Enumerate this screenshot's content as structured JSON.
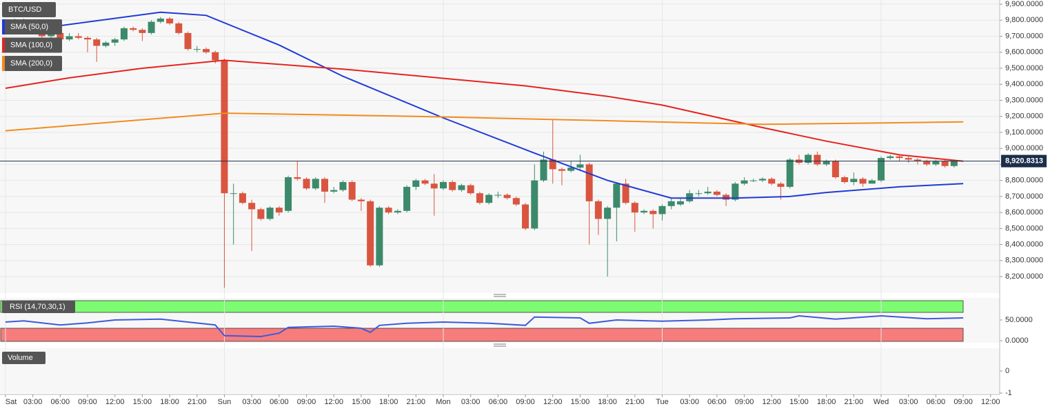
{
  "chart_data": [
    {
      "type": "candlestick",
      "title": "BTC/USD",
      "x": [
        0,
        1,
        2,
        3,
        4,
        5,
        6,
        7,
        8,
        9,
        10,
        11,
        12,
        13,
        14,
        15,
        16,
        17,
        18,
        19,
        20,
        21,
        22,
        23,
        24,
        25,
        26,
        27,
        28,
        29,
        30,
        31,
        32,
        33,
        34,
        35,
        36,
        37,
        38,
        39,
        40,
        41,
        42,
        43,
        44,
        45,
        46,
        47,
        48,
        49,
        50,
        51,
        52,
        53,
        54,
        55,
        56,
        57,
        58,
        59,
        60,
        61,
        62,
        63,
        64,
        65,
        66,
        67,
        68,
        69,
        70,
        71,
        72,
        73,
        74,
        75,
        76,
        77,
        78,
        79,
        80,
        81,
        82,
        83,
        84,
        85,
        86,
        87,
        88,
        89,
        90,
        91,
        92,
        93,
        94,
        95,
        96,
        97,
        98,
        99,
        100,
        101,
        102,
        103,
        104
      ],
      "open": [
        9790,
        9760,
        9800,
        9750,
        9730,
        9700,
        9720,
        9680,
        9700,
        9690,
        9680,
        9640,
        9660,
        9680,
        9750,
        9740,
        9720,
        9790,
        9810,
        9780,
        9720,
        9620,
        9620,
        9600,
        9550,
        8720,
        8720,
        8660,
        8620,
        8560,
        8630,
        8610,
        8820,
        8810,
        8750,
        8810,
        8730,
        8740,
        8790,
        8680,
        8670,
        8270,
        8630,
        8600,
        8610,
        8760,
        8800,
        8780,
        8750,
        8790,
        8740,
        8770,
        8720,
        8660,
        8710,
        8710,
        8690,
        8650,
        8500,
        8800,
        8930,
        8870,
        8860,
        8880,
        8900,
        8670,
        8560,
        8630,
        8780,
        8660,
        8600,
        8610,
        8590,
        8640,
        8650,
        8670,
        8720,
        8720,
        8730,
        8710,
        8680,
        8780,
        8800,
        8800,
        8810,
        8780,
        8760,
        8930,
        8910,
        8960,
        8900,
        8920,
        8820,
        8790,
        8810,
        8780,
        8800,
        8940,
        8950,
        8940,
        8930,
        8920,
        8900,
        8920,
        8890
      ],
      "high": [
        9800,
        9810,
        9810,
        9760,
        9740,
        9730,
        9730,
        9720,
        9720,
        9700,
        9690,
        9670,
        9690,
        9760,
        9760,
        9750,
        9800,
        9820,
        9820,
        9790,
        9730,
        9640,
        9630,
        9610,
        9560,
        8780,
        8730,
        8680,
        8630,
        8640,
        8640,
        8830,
        8920,
        8820,
        8820,
        8820,
        8760,
        8800,
        8800,
        8690,
        8680,
        8640,
        8640,
        8620,
        8770,
        8810,
        8810,
        8840,
        8800,
        8800,
        8780,
        8780,
        8730,
        8720,
        8730,
        8720,
        8700,
        8660,
        8900,
        8980,
        9180,
        8880,
        8920,
        8960,
        8910,
        8680,
        8640,
        8790,
        8810,
        8670,
        8620,
        8620,
        8650,
        8690,
        8690,
        8740,
        8740,
        8760,
        8740,
        8720,
        8790,
        8820,
        8810,
        8820,
        8820,
        8790,
        8940,
        8960,
        8970,
        8980,
        8930,
        8930,
        8830,
        8850,
        8820,
        8810,
        8950,
        8960,
        8960,
        8950,
        8940,
        8930,
        8930,
        8930,
        8930
      ],
      "low": [
        9750,
        9750,
        9740,
        9720,
        9690,
        9640,
        9670,
        9670,
        9680,
        9600,
        9540,
        9630,
        9640,
        9670,
        9730,
        9670,
        9710,
        9780,
        9770,
        9710,
        9610,
        9600,
        9590,
        9530,
        8130,
        8400,
        8650,
        8360,
        8550,
        8550,
        8580,
        8600,
        8800,
        8740,
        8740,
        8660,
        8720,
        8730,
        8670,
        8610,
        8260,
        8260,
        8590,
        8590,
        8600,
        8740,
        8770,
        8580,
        8740,
        8730,
        8730,
        8710,
        8650,
        8650,
        8690,
        8680,
        8640,
        8490,
        8490,
        8790,
        8780,
        8770,
        8850,
        8870,
        8400,
        8460,
        8200,
        8420,
        8650,
        8480,
        8590,
        8500,
        8550,
        8620,
        8640,
        8660,
        8700,
        8710,
        8700,
        8640,
        8670,
        8770,
        8790,
        8790,
        8770,
        8680,
        8750,
        8900,
        8900,
        8890,
        8890,
        8810,
        8780,
        8770,
        8760,
        8780,
        8790,
        8930,
        8920,
        8910,
        8900,
        8890,
        8890,
        8880,
        8880
      ],
      "close": [
        9760,
        9800,
        9750,
        9730,
        9700,
        9720,
        9680,
        9700,
        9690,
        9680,
        9640,
        9660,
        9680,
        9750,
        9740,
        9720,
        9790,
        9810,
        9780,
        9720,
        9620,
        9620,
        9600,
        9550,
        8720,
        8720,
        8660,
        8620,
        8560,
        8630,
        8600,
        8820,
        8810,
        8750,
        8810,
        8730,
        8740,
        8790,
        8680,
        8670,
        8270,
        8630,
        8600,
        8610,
        8760,
        8800,
        8780,
        8750,
        8790,
        8740,
        8770,
        8720,
        8660,
        8710,
        8710,
        8690,
        8650,
        8500,
        8800,
        8930,
        8870,
        8860,
        8880,
        8900,
        8670,
        8560,
        8630,
        8780,
        8660,
        8600,
        8610,
        8590,
        8640,
        8670,
        8670,
        8720,
        8720,
        8730,
        8710,
        8680,
        8780,
        8800,
        8800,
        8810,
        8780,
        8760,
        8930,
        8910,
        8960,
        8900,
        8920,
        8820,
        8790,
        8810,
        8780,
        8800,
        8940,
        8950,
        8940,
        8930,
        8920,
        8900,
        8920,
        8890,
        8920
      ],
      "up_color": "#3c8a6b",
      "down_color": "#d95540",
      "series": [
        {
          "name": "SMA (50,0)",
          "color": "#1f3bd6",
          "x": [
            0,
            17,
            22,
            30,
            37,
            48,
            58,
            66,
            73,
            80,
            86,
            90,
            98,
            105
          ],
          "values": [
            9720,
            9850,
            9830,
            9645,
            9450,
            9190,
            8970,
            8800,
            8690,
            8690,
            8700,
            8725,
            8760,
            8780
          ]
        },
        {
          "name": "SMA (100,0)",
          "color": "#e5231f",
          "x": [
            0,
            7,
            15,
            24,
            37,
            57,
            66,
            72,
            83,
            90,
            98,
            105
          ],
          "values": [
            9375,
            9440,
            9500,
            9550,
            9495,
            9390,
            9325,
            9270,
            9130,
            9045,
            8960,
            8920
          ]
        },
        {
          "name": "SMA (200,0)",
          "color": "#f28c1c",
          "x": [
            0,
            24,
            45,
            68,
            83,
            105
          ],
          "values": [
            9110,
            9220,
            9200,
            9170,
            9150,
            9165
          ]
        }
      ],
      "last_price": {
        "value": 8920.8313,
        "label": "8,920.8313"
      },
      "xlim": [
        -0.6,
        109
      ],
      "xticks": [
        {
          "value": 0,
          "label": "Sat"
        },
        {
          "value": 3,
          "label": "03:00"
        },
        {
          "value": 6,
          "label": "06:00"
        },
        {
          "value": 9,
          "label": "09:00"
        },
        {
          "value": 12,
          "label": "12:00"
        },
        {
          "value": 15,
          "label": "15:00"
        },
        {
          "value": 18,
          "label": "18:00"
        },
        {
          "value": 21,
          "label": "21:00"
        },
        {
          "value": 24,
          "label": "Sun"
        },
        {
          "value": 27,
          "label": "03:00"
        },
        {
          "value": 30,
          "label": "06:00"
        },
        {
          "value": 33,
          "label": "09:00"
        },
        {
          "value": 36,
          "label": "12:00"
        },
        {
          "value": 39,
          "label": "15:00"
        },
        {
          "value": 42,
          "label": "18:00"
        },
        {
          "value": 45,
          "label": "21:00"
        },
        {
          "value": 48,
          "label": "Mon"
        },
        {
          "value": 51,
          "label": "03:00"
        },
        {
          "value": 54,
          "label": "06:00"
        },
        {
          "value": 57,
          "label": "09:00"
        },
        {
          "value": 60,
          "label": "12:00"
        },
        {
          "value": 63,
          "label": "15:00"
        },
        {
          "value": 66,
          "label": "18:00"
        },
        {
          "value": 69,
          "label": "21:00"
        },
        {
          "value": 72,
          "label": "Tue"
        },
        {
          "value": 75,
          "label": "03:00"
        },
        {
          "value": 78,
          "label": "06:00"
        },
        {
          "value": 81,
          "label": "09:00"
        },
        {
          "value": 84,
          "label": "12:00"
        },
        {
          "value": 87,
          "label": "15:00"
        },
        {
          "value": 90,
          "label": "18:00"
        },
        {
          "value": 93,
          "label": "21:00"
        },
        {
          "value": 96,
          "label": "Wed"
        },
        {
          "value": 99,
          "label": "03:00"
        },
        {
          "value": 102,
          "label": "06:00"
        },
        {
          "value": 105,
          "label": "09:00"
        },
        {
          "value": 108,
          "label": "12:00"
        }
      ],
      "ylim": [
        8097,
        9926
      ],
      "yticks": [
        {
          "value": 8200,
          "label": "8,200.0000"
        },
        {
          "value": 8300,
          "label": "8,300.0000"
        },
        {
          "value": 8400,
          "label": "8,400.0000"
        },
        {
          "value": 8500,
          "label": "8,500.0000"
        },
        {
          "value": 8600,
          "label": "8,600.0000"
        },
        {
          "value": 8700,
          "label": "8,700.0000"
        },
        {
          "value": 8800,
          "label": "8,800.0000"
        },
        {
          "value": 8900,
          "label": "8,900.0000"
        },
        {
          "value": 9000,
          "label": "9,000.0000"
        },
        {
          "value": 9100,
          "label": "9,100.0000"
        },
        {
          "value": 9200,
          "label": "9,200.0000"
        },
        {
          "value": 9300,
          "label": "9,300.0000"
        },
        {
          "value": 9400,
          "label": "9,400.0000"
        },
        {
          "value": 9500,
          "label": "9,500.0000"
        },
        {
          "value": 9600,
          "label": "9,600.0000"
        },
        {
          "value": 9700,
          "label": "9,700.0000"
        },
        {
          "value": 9800,
          "label": "9,800.0000"
        },
        {
          "value": 9900,
          "label": "9,900.0000"
        }
      ],
      "grid": true
    },
    {
      "type": "line",
      "title": "RSI (14,70,30,1)",
      "series": [
        {
          "color": "#3b5bdb",
          "x": [
            0,
            2,
            6,
            9,
            12,
            17,
            20,
            23,
            24,
            28,
            30,
            31,
            36,
            39,
            40,
            41,
            44,
            48,
            53,
            57,
            58,
            63,
            64,
            67,
            72,
            77,
            80,
            86,
            87,
            91,
            96,
            101,
            105
          ],
          "values": [
            45,
            48,
            38,
            43,
            50,
            52,
            45,
            38,
            12,
            10,
            18,
            32,
            35,
            30,
            20,
            37,
            42,
            45,
            42,
            37,
            57,
            55,
            42,
            50,
            47,
            50,
            53,
            55,
            60,
            52,
            60,
            53,
            55
          ]
        }
      ],
      "ylim": [
        -5,
        103.3
      ],
      "yticks": [
        {
          "value": 0,
          "label": "0.0000"
        },
        {
          "value": 50,
          "label": "50.0000"
        }
      ]
    },
    {
      "type": "bar",
      "title": "Volume",
      "ylim": [
        -1,
        1.03
      ],
      "yticks": [
        -1,
        0
      ]
    }
  ]
}
